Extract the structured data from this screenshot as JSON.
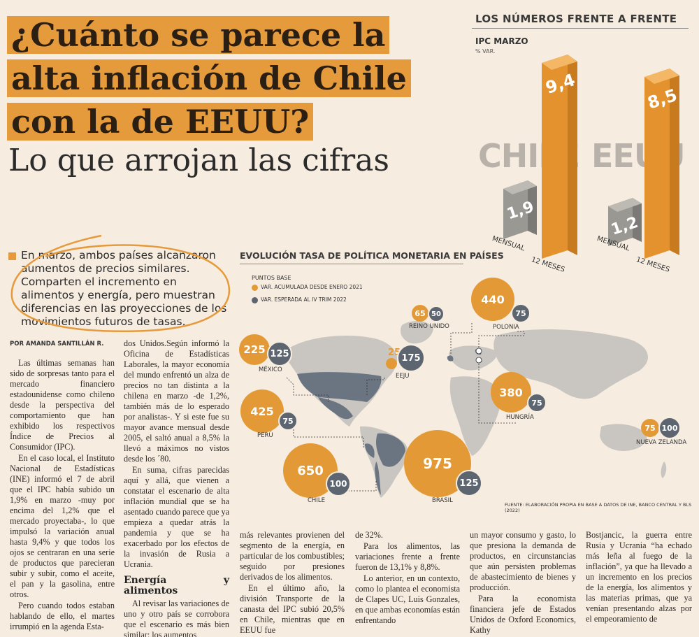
{
  "headline": {
    "line1": "¿Cuánto se parece la",
    "line2": "alta inflación de Chile",
    "line3": "con la de EEUU?",
    "sub": "Lo que arrojan las cifras"
  },
  "numbers": {
    "title": "LOS NÚMEROS FRENTE A FRENTE",
    "ipc_title": "IPC MARZO",
    "ipc_unit": "% VAR.",
    "countries": [
      {
        "name": "CHILE",
        "monthly": "1,9",
        "annual": "9,4",
        "monthly_label": "MENSUAL",
        "annual_label": "12 MESES"
      },
      {
        "name": "EEUU",
        "monthly": "1,2",
        "annual": "8,5",
        "monthly_label": "MENSUAL",
        "annual_label": "12 MESES"
      }
    ]
  },
  "lead": "En marzo, ambos países alcanzaron aumentos de precios similares. Comparten el incremento en alimentos y energía, pero muestran diferencias en las proyecciones de los movimientos futuros de tasas.",
  "byline": "POR AMANDA SANTILLÁN R.",
  "map": {
    "title": "EVOLUCIÓN TASA DE POLÍTICA MONETARIA EN PAÍSES",
    "legend_title": "PUNTOS BASE",
    "legend_a": "VAR. ACUMULADA DESDE ENERO 2021",
    "legend_b": "VAR. ESPERADA AL IV TRIM 2022",
    "colors": {
      "acumulada": "#e39a36",
      "esperada": "#5d6670"
    },
    "countries": [
      {
        "name": "MÉXICO",
        "a": "225",
        "b": "125"
      },
      {
        "name": "EEJU",
        "a": "25",
        "b": "175"
      },
      {
        "name": "REINO UNIDO",
        "a": "65",
        "b": "50"
      },
      {
        "name": "POLONIA",
        "a": "440",
        "b": "75"
      },
      {
        "name": "HUNGRÍA",
        "a": "380",
        "b": "75"
      },
      {
        "name": "PERÚ",
        "a": "425",
        "b": "75"
      },
      {
        "name": "CHILE",
        "a": "650",
        "b": "100"
      },
      {
        "name": "BRASIL",
        "a": "975",
        "b": "125"
      },
      {
        "name": "NUEVA ZELANDA",
        "a": "75",
        "b": "100"
      }
    ],
    "source": "FUENTE: ELABORACIÓN PROPIA EN BASE A DATOS DE INE, BANCO CENTRAL Y BLS (2022)"
  },
  "body": {
    "col1": [
      "Las últimas semanas han sido de sorpresas tanto para el mercado financiero estadounidense como chileno desde la perspectiva del comportamiento que han exhibido los respectivos Índice de Precios al Consumidor (IPC).",
      "En el caso local, el Instituto Nacional de Estadísticas (INE) informó el 7 de abril que el IPC había subido un 1,9% en marzo -muy por encima del 1,2% que el mercado proyectaba-, lo que impulsó la variación anual hasta 9,4% y que todos los ojos se centraran en una serie de productos que parecieran subir y subir, como el aceite, el pan y la gasolina, entre otros.",
      "Pero cuando todos estaban hablando de ello, el martes irrumpió en la agenda Esta-"
    ],
    "col2": [
      "dos Unidos.Según informó la Oficina de Estadísticas Laborales, la mayor economía del mundo enfrentó un alza de precios no tan distinta a la chilena en marzo -de 1,2%, también más de lo esperado por analistas-. Y si este fue su mayor avance mensual desde 2005, el saltó anual a 8,5% la llevó a máximos no vistos desde los ´80.",
      "En suma, cifras parecidas aquí y allá, que vienen a constatar el escenario de alta inflación mundial que se ha asentado cuando parece que ya empieza a quedar atrás la pandemia y que se ha exacerbado por los efectos de la invasión de Rusia a Ucrania."
    ],
    "col2_heading": "Energía y alimentos",
    "col2_after": "Al revisar las variaciones de uno y otro país se corrobora que el escenario es más bien similar: los aumentos",
    "col3": "más relevantes provienen del segmento de la energía, en particular de los combustibles; seguido por presiones derivados de los alimentos.",
    "col3b": "En el último año, la división Transporte de la canasta del IPC subió 20,5% en Chile, mientras que en EEUU fue",
    "col4a": "de 32%.",
    "col4b": "Para los alimentos, las variaciones frente a frente fueron de 13,1% y 8,8%.",
    "col4c": "Lo anterior, en un contexto, como lo plantea el economista de Clapes UC, Luis Gonzales, en que ambas economías están enfrentando",
    "col5a": "un mayor consumo y gasto, lo que presiona la demanda de productos, en circunstancias que aún persisten problemas de abastecimiento de bienes y producción.",
    "col5b": "Para la economista financiera jefe de Estados Unidos de Oxford Economics, Kathy",
    "col6": "Bostjancic, la guerra entre Rusia y Ucrania “ha echado más leña al fuego de la inflación”, ya que ha llevado a un incremento en los precios de la energía, los alimentos y las materias primas, que ya venían presentando alzas por el empeoramiento de"
  }
}
